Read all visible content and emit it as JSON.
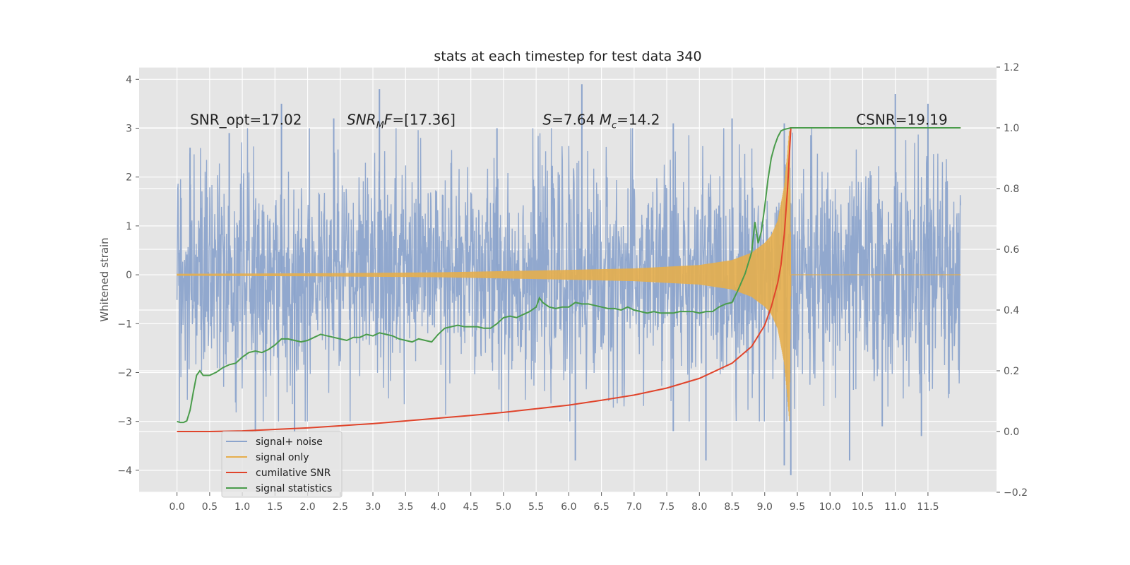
{
  "chart_data": {
    "type": "line",
    "title": "stats at each timestep for test data 340",
    "xlabel": "",
    "ylabel": "Whitened strain",
    "y2label": "",
    "xlim": [
      -0.58,
      12.55
    ],
    "ylim": [
      -4.45,
      4.25
    ],
    "y2lim": [
      -0.2,
      1.2
    ],
    "xticks": [
      0.0,
      0.5,
      1.0,
      1.5,
      2.0,
      2.5,
      3.0,
      3.5,
      4.0,
      4.5,
      5.0,
      5.5,
      6.0,
      6.5,
      7.0,
      7.5,
      8.0,
      8.5,
      9.0,
      9.5,
      10.0,
      10.5,
      11.0,
      11.5
    ],
    "xtick_labels": [
      "0.0",
      "0.5",
      "1.0",
      "1.5",
      "2.0",
      "2.5",
      "3.0",
      "3.5",
      "4.0",
      "4.5",
      "5.0",
      "5.5",
      "6.0",
      "6.5",
      "7.0",
      "7.5",
      "8.0",
      "8.5",
      "9.0",
      "9.5",
      "10.0",
      "10.5",
      "11.0",
      "11.5"
    ],
    "yticks": [
      -4,
      -3,
      -2,
      -1,
      0,
      1,
      2,
      3,
      4
    ],
    "ytick_labels": [
      "−4",
      "−3",
      "−2",
      "−1",
      "0",
      "1",
      "2",
      "3",
      "4"
    ],
    "y2ticks": [
      -0.2,
      0.0,
      0.2,
      0.4,
      0.6,
      0.8,
      1.0,
      1.2
    ],
    "y2tick_labels": [
      "−0.2",
      "0.0",
      "0.2",
      "0.4",
      "0.6",
      "0.8",
      "1.0",
      "1.2"
    ],
    "grid": true,
    "legend_position": "lower-left",
    "annotations": [
      {
        "label": "SNR_opt=17.02",
        "x": 0.2,
        "y": 3.07
      },
      {
        "label": "SNR_M F=[17.36]",
        "x": 2.6,
        "y": 3.07
      },
      {
        "label": "S=7.64   M_c=14.2",
        "x": 5.6,
        "y": 3.07
      },
      {
        "label": "CSNR=19.19",
        "x": 10.4,
        "y": 3.07
      }
    ],
    "series": [
      {
        "name": "signal+ noise",
        "axis": "left",
        "kind": "noise",
        "x_range": [
          0.0,
          12.0
        ],
        "envelope_typical": 1.8,
        "peaks": [
          {
            "x": 0.2,
            "y": 2.6
          },
          {
            "x": 0.8,
            "y": 2.9
          },
          {
            "x": 1.6,
            "y": 3.5
          },
          {
            "x": 2.4,
            "y": 3.2
          },
          {
            "x": 3.1,
            "y": 3.8
          },
          {
            "x": 4.9,
            "y": 3.0
          },
          {
            "x": 6.2,
            "y": 3.9
          },
          {
            "x": 7.6,
            "y": 3.1
          },
          {
            "x": 8.5,
            "y": 3.2
          },
          {
            "x": 9.3,
            "y": 3.1
          },
          {
            "x": 11.0,
            "y": 3.7
          },
          {
            "x": 11.5,
            "y": 3.5
          },
          {
            "x": 1.2,
            "y": -3.2
          },
          {
            "x": 1.8,
            "y": -3.2
          },
          {
            "x": 6.1,
            "y": -3.8
          },
          {
            "x": 7.6,
            "y": -3.2
          },
          {
            "x": 8.1,
            "y": -3.8
          },
          {
            "x": 9.3,
            "y": -3.9
          },
          {
            "x": 9.4,
            "y": -4.1
          },
          {
            "x": 10.3,
            "y": -3.8
          },
          {
            "x": 10.8,
            "y": -3.1
          },
          {
            "x": 11.4,
            "y": -3.3
          }
        ]
      },
      {
        "name": "signal only",
        "axis": "left",
        "kind": "chirp",
        "amplitude": [
          [
            0.0,
            0.02
          ],
          [
            2.0,
            0.03
          ],
          [
            4.0,
            0.05
          ],
          [
            6.0,
            0.1
          ],
          [
            7.0,
            0.13
          ],
          [
            8.0,
            0.2
          ],
          [
            8.5,
            0.3
          ],
          [
            8.8,
            0.45
          ],
          [
            9.0,
            0.65
          ],
          [
            9.1,
            0.8
          ],
          [
            9.2,
            1.1
          ],
          [
            9.3,
            1.8
          ],
          [
            9.35,
            2.5
          ],
          [
            9.38,
            3.0
          ],
          [
            9.4,
            0.0
          ]
        ]
      },
      {
        "name": "cumilative SNR",
        "axis": "right",
        "points": [
          [
            0.0,
            0.0
          ],
          [
            0.5,
            0.0
          ],
          [
            1.0,
            0.002
          ],
          [
            1.5,
            0.007
          ],
          [
            2.0,
            0.012
          ],
          [
            2.5,
            0.019
          ],
          [
            3.0,
            0.026
          ],
          [
            3.5,
            0.035
          ],
          [
            4.0,
            0.044
          ],
          [
            4.5,
            0.053
          ],
          [
            5.0,
            0.063
          ],
          [
            5.5,
            0.075
          ],
          [
            6.0,
            0.087
          ],
          [
            6.5,
            0.103
          ],
          [
            7.0,
            0.12
          ],
          [
            7.5,
            0.143
          ],
          [
            8.0,
            0.175
          ],
          [
            8.5,
            0.225
          ],
          [
            8.8,
            0.28
          ],
          [
            9.0,
            0.35
          ],
          [
            9.1,
            0.41
          ],
          [
            9.2,
            0.49
          ],
          [
            9.25,
            0.55
          ],
          [
            9.3,
            0.65
          ],
          [
            9.35,
            0.8
          ],
          [
            9.38,
            0.92
          ],
          [
            9.4,
            1.0
          ],
          [
            10.0,
            1.0
          ],
          [
            11.0,
            1.0
          ],
          [
            12.0,
            1.0
          ]
        ]
      },
      {
        "name": "signal statistics",
        "axis": "right",
        "points": [
          [
            0.0,
            0.033
          ],
          [
            0.05,
            0.03
          ],
          [
            0.1,
            0.03
          ],
          [
            0.15,
            0.035
          ],
          [
            0.2,
            0.07
          ],
          [
            0.25,
            0.13
          ],
          [
            0.3,
            0.185
          ],
          [
            0.35,
            0.2
          ],
          [
            0.4,
            0.185
          ],
          [
            0.5,
            0.185
          ],
          [
            0.6,
            0.195
          ],
          [
            0.7,
            0.21
          ],
          [
            0.8,
            0.22
          ],
          [
            0.9,
            0.225
          ],
          [
            1.0,
            0.245
          ],
          [
            1.1,
            0.26
          ],
          [
            1.2,
            0.265
          ],
          [
            1.3,
            0.26
          ],
          [
            1.4,
            0.27
          ],
          [
            1.5,
            0.285
          ],
          [
            1.6,
            0.305
          ],
          [
            1.7,
            0.305
          ],
          [
            1.8,
            0.3
          ],
          [
            1.9,
            0.295
          ],
          [
            2.0,
            0.3
          ],
          [
            2.1,
            0.31
          ],
          [
            2.2,
            0.32
          ],
          [
            2.3,
            0.315
          ],
          [
            2.4,
            0.31
          ],
          [
            2.5,
            0.305
          ],
          [
            2.6,
            0.3
          ],
          [
            2.7,
            0.31
          ],
          [
            2.8,
            0.31
          ],
          [
            2.9,
            0.32
          ],
          [
            3.0,
            0.315
          ],
          [
            3.1,
            0.325
          ],
          [
            3.2,
            0.32
          ],
          [
            3.3,
            0.315
          ],
          [
            3.4,
            0.305
          ],
          [
            3.5,
            0.3
          ],
          [
            3.6,
            0.295
          ],
          [
            3.7,
            0.305
          ],
          [
            3.8,
            0.3
          ],
          [
            3.9,
            0.295
          ],
          [
            4.0,
            0.32
          ],
          [
            4.1,
            0.34
          ],
          [
            4.2,
            0.345
          ],
          [
            4.3,
            0.35
          ],
          [
            4.4,
            0.345
          ],
          [
            4.5,
            0.345
          ],
          [
            4.6,
            0.345
          ],
          [
            4.7,
            0.34
          ],
          [
            4.8,
            0.34
          ],
          [
            4.9,
            0.355
          ],
          [
            5.0,
            0.375
          ],
          [
            5.1,
            0.38
          ],
          [
            5.2,
            0.375
          ],
          [
            5.3,
            0.385
          ],
          [
            5.4,
            0.395
          ],
          [
            5.5,
            0.41
          ],
          [
            5.55,
            0.44
          ],
          [
            5.6,
            0.425
          ],
          [
            5.7,
            0.41
          ],
          [
            5.8,
            0.405
          ],
          [
            5.9,
            0.41
          ],
          [
            6.0,
            0.41
          ],
          [
            6.1,
            0.425
          ],
          [
            6.2,
            0.42
          ],
          [
            6.3,
            0.42
          ],
          [
            6.4,
            0.415
          ],
          [
            6.5,
            0.41
          ],
          [
            6.6,
            0.405
          ],
          [
            6.7,
            0.405
          ],
          [
            6.8,
            0.4
          ],
          [
            6.9,
            0.41
          ],
          [
            7.0,
            0.4
          ],
          [
            7.1,
            0.395
          ],
          [
            7.2,
            0.39
          ],
          [
            7.3,
            0.395
          ],
          [
            7.4,
            0.39
          ],
          [
            7.5,
            0.39
          ],
          [
            7.6,
            0.39
          ],
          [
            7.7,
            0.395
          ],
          [
            7.8,
            0.395
          ],
          [
            7.9,
            0.395
          ],
          [
            8.0,
            0.39
          ],
          [
            8.1,
            0.395
          ],
          [
            8.2,
            0.395
          ],
          [
            8.3,
            0.41
          ],
          [
            8.4,
            0.42
          ],
          [
            8.5,
            0.425
          ],
          [
            8.6,
            0.47
          ],
          [
            8.7,
            0.52
          ],
          [
            8.8,
            0.59
          ],
          [
            8.85,
            0.69
          ],
          [
            8.9,
            0.62
          ],
          [
            8.95,
            0.66
          ],
          [
            9.0,
            0.74
          ],
          [
            9.05,
            0.83
          ],
          [
            9.1,
            0.9
          ],
          [
            9.15,
            0.94
          ],
          [
            9.2,
            0.97
          ],
          [
            9.25,
            0.99
          ],
          [
            9.3,
            0.995
          ],
          [
            9.4,
            1.0
          ],
          [
            10.0,
            1.0
          ],
          [
            11.0,
            1.0
          ],
          [
            12.0,
            1.0
          ]
        ]
      }
    ]
  },
  "colors": {
    "background": "#e5e5e5",
    "grid": "#ffffff",
    "noise": "#8ca4cc",
    "signal": "#e6ae4c",
    "csnr": "#e0442b",
    "stats": "#4a9c4b",
    "text": "#222222",
    "tick_text": "#555555"
  }
}
